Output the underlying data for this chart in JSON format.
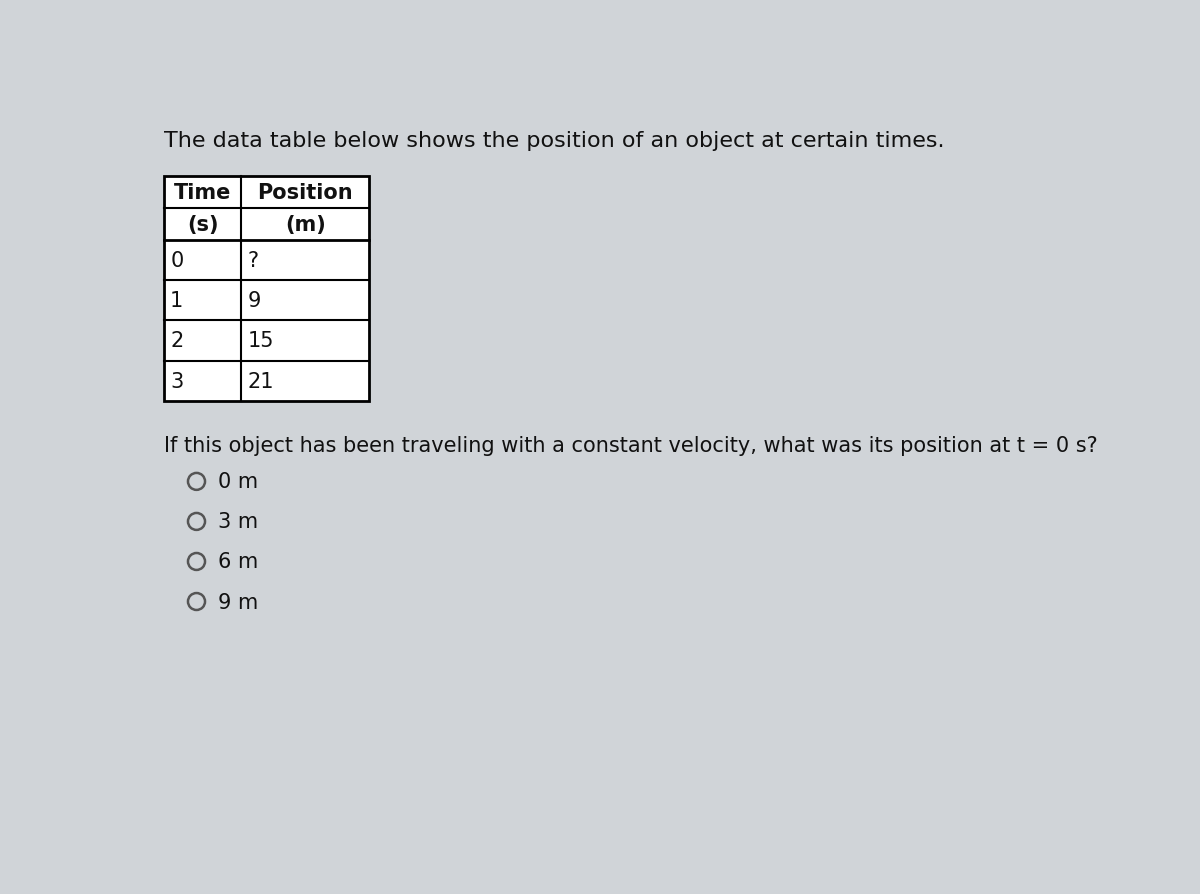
{
  "title_text": "The data table below shows the position of an object at certain times.",
  "col1_header1": "Time",
  "col2_header1": "Position",
  "col1_header2": "(s)",
  "col2_header2": "(m)",
  "table_data": [
    [
      "0",
      "?"
    ],
    [
      "1",
      "9"
    ],
    [
      "2",
      "15"
    ],
    [
      "3",
      "21"
    ]
  ],
  "question_text": "If this object has been traveling with a constant velocity, what was its position at t = 0 s?",
  "options": [
    "0 m",
    "3 m",
    "6 m",
    "9 m"
  ],
  "background_color": "#d0d4d8",
  "text_color": "#111111",
  "title_fontsize": 16,
  "question_fontsize": 15,
  "option_fontsize": 15,
  "table_fontsize": 15
}
